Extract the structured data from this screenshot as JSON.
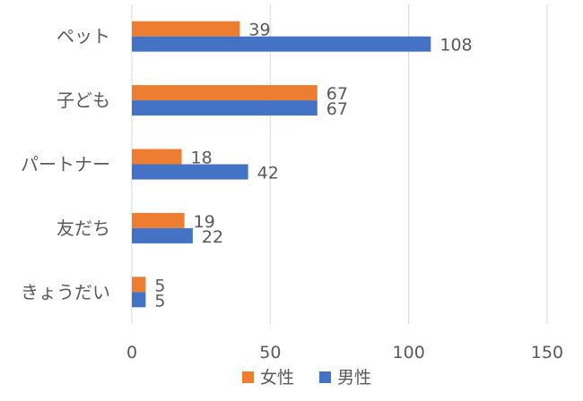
{
  "chart_data": {
    "type": "bar",
    "orientation": "horizontal",
    "categories": [
      "ペット",
      "子ども",
      "パートナー",
      "友だち",
      "きょうだい"
    ],
    "series": [
      {
        "name": "女性",
        "color": "#ED7D31",
        "values": [
          39,
          67,
          18,
          19,
          5
        ]
      },
      {
        "name": "男性",
        "color": "#4472C4",
        "values": [
          108,
          67,
          42,
          22,
          5
        ]
      }
    ],
    "xlim": [
      0,
      150
    ],
    "xticks": [
      0,
      50,
      100,
      150
    ],
    "grid": true,
    "data_labels": true,
    "legend": "bottom",
    "gridline_color": "#D9D9D9"
  }
}
